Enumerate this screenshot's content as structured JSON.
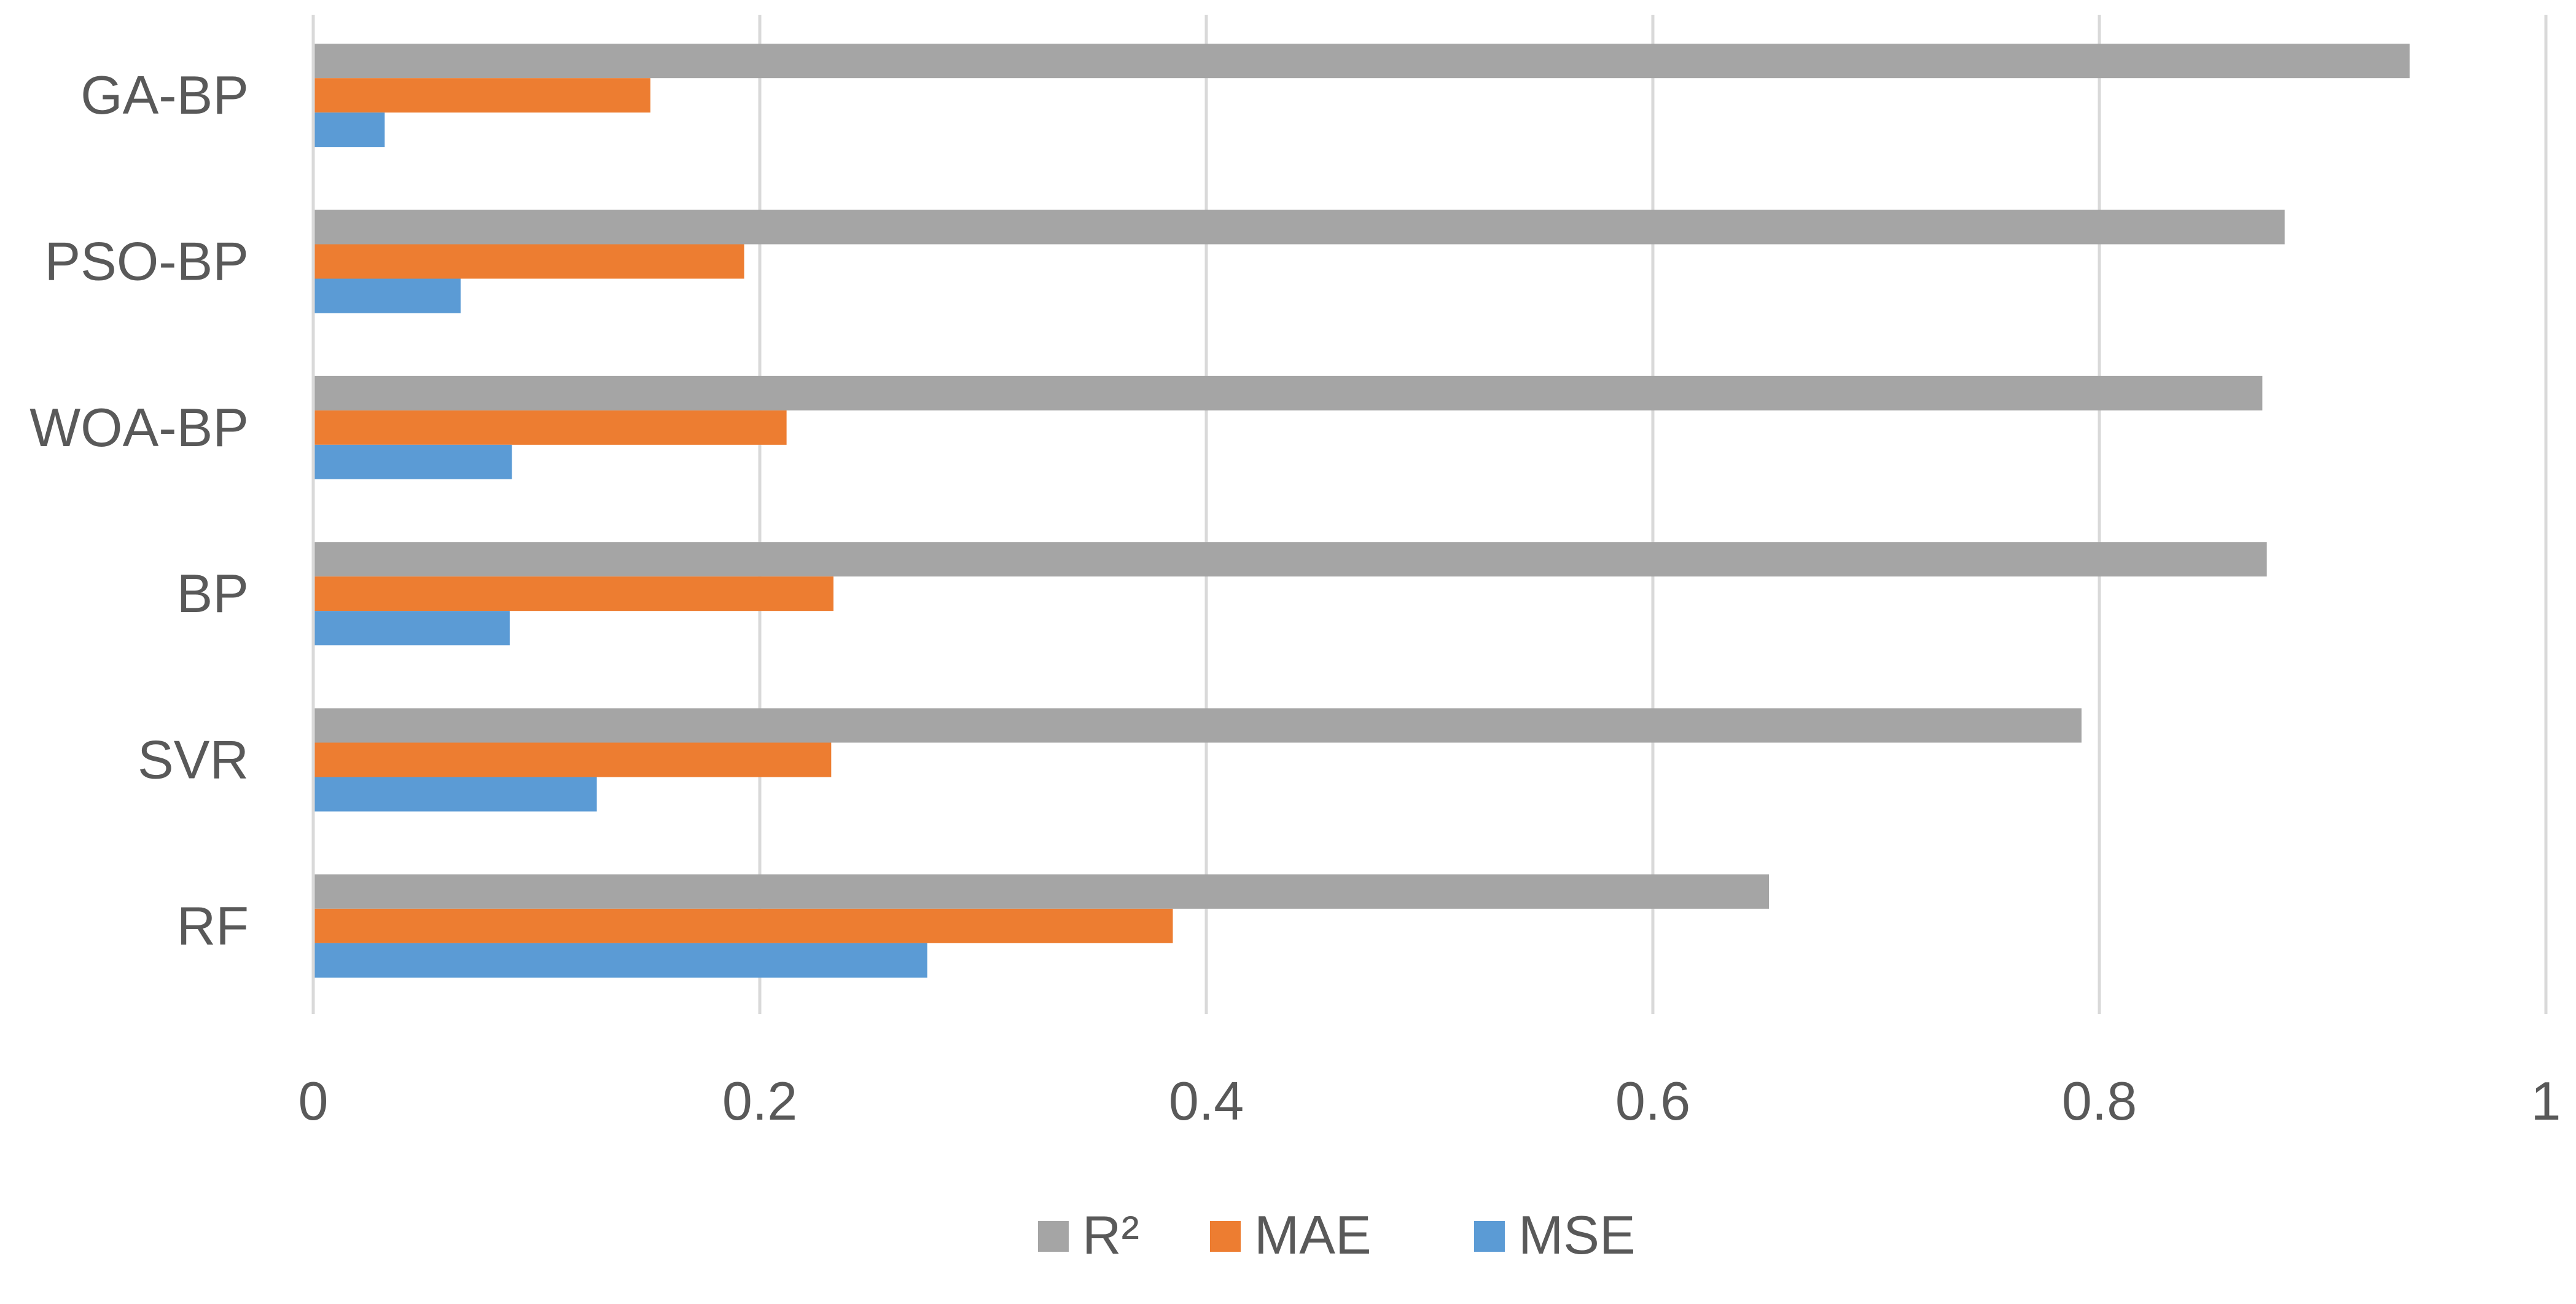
{
  "chart_data": {
    "type": "bar",
    "orientation": "horizontal",
    "title": "",
    "xlabel": "",
    "ylabel": "",
    "categories": [
      "GA-BP",
      "PSO-BP",
      "WOA-BP",
      "BP",
      "SVR",
      "RF"
    ],
    "xlim": [
      0,
      1
    ],
    "xticks": [
      "0",
      "0.2",
      "0.4",
      "0.6",
      "0.8",
      "1"
    ],
    "xtick_values": [
      0,
      0.2,
      0.4,
      0.6,
      0.8,
      1
    ],
    "grid": "vertical",
    "legend_position": "bottom",
    "series": [
      {
        "name": "R²",
        "color": "#a5a5a5",
        "values": [
          0.939,
          0.883,
          0.873,
          0.875,
          0.792,
          0.652
        ]
      },
      {
        "name": "MAE",
        "color": "#ed7d31",
        "values": [
          0.151,
          0.193,
          0.212,
          0.233,
          0.232,
          0.385
        ]
      },
      {
        "name": "MSE",
        "color": "#5b9bd5",
        "values": [
          0.032,
          0.066,
          0.089,
          0.088,
          0.127,
          0.275
        ]
      }
    ]
  }
}
